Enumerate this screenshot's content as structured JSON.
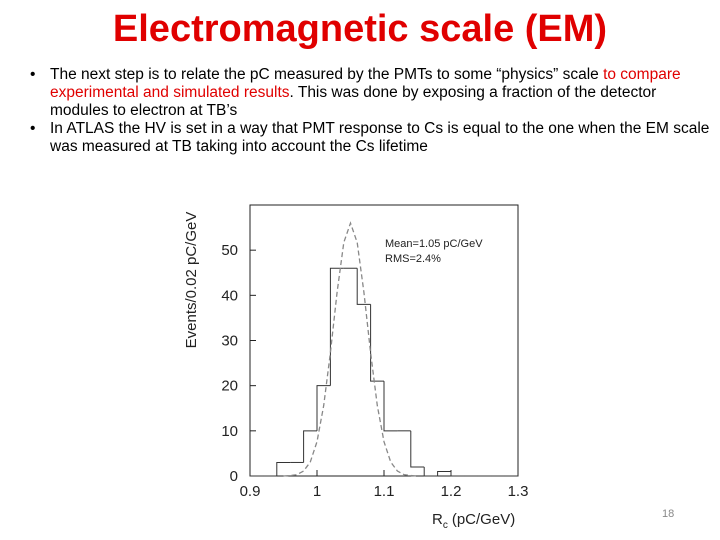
{
  "title": "Electromagnetic scale (EM)",
  "bullets": [
    {
      "parts": [
        "The next step is to relate the pC measured by the PMTs to some “physics” scale ",
        "to compare experimental and simulated results",
        ". This was done by exposing a fraction of the detector modules to electron at TB’s"
      ]
    },
    {
      "parts": [
        "In ATLAS the HV is set in a way that PMT response  to Cs  is  equal to the one  when the EM scale was  measured  at TB taking into account the Cs lifetime"
      ]
    }
  ],
  "page_number": "18",
  "chart_data": {
    "type": "histogram",
    "y_label": "Events/0.02 pC/GeV",
    "x_label_symbol": "R",
    "x_label_subscript": "c",
    "x_label_unit": "(pC/GeV)",
    "annotations": [
      "Mean=1.05 pC/GeV",
      "RMS=2.4%"
    ],
    "bins": [
      0.9,
      0.92,
      0.94,
      0.96,
      0.98,
      1.0,
      1.02,
      1.04,
      1.06,
      1.08,
      1.1,
      1.12,
      1.14,
      1.16,
      1.18,
      1.2,
      1.22,
      1.24,
      1.26,
      1.28,
      1.3
    ],
    "values": [
      0,
      0,
      3,
      3,
      10,
      20,
      46,
      46,
      38,
      21,
      10,
      10,
      2,
      0,
      1,
      0,
      0,
      0,
      0,
      0
    ],
    "color": "#333333",
    "fit": {
      "color": "#888888",
      "x": [
        0.95,
        0.96,
        0.97,
        0.98,
        0.99,
        1.0,
        1.01,
        1.02,
        1.03,
        1.04,
        1.05,
        1.06,
        1.07,
        1.08,
        1.09,
        1.1,
        1.11,
        1.12,
        1.13,
        1.14,
        1.15
      ],
      "values": [
        0,
        0.1,
        0.3,
        1.1,
        3.1,
        7.6,
        15.6,
        27.3,
        40.7,
        51.7,
        56,
        51.7,
        40.7,
        27.3,
        15.6,
        7.6,
        3.1,
        1.1,
        0.3,
        0.1,
        0
      ]
    },
    "xlim": [
      0.9,
      1.3
    ],
    "xticks": [
      0.9,
      1,
      1.1,
      1.2,
      1.3
    ],
    "ylim": [
      0,
      60
    ],
    "yticks": [
      0,
      10,
      20,
      30,
      40,
      50
    ]
  }
}
